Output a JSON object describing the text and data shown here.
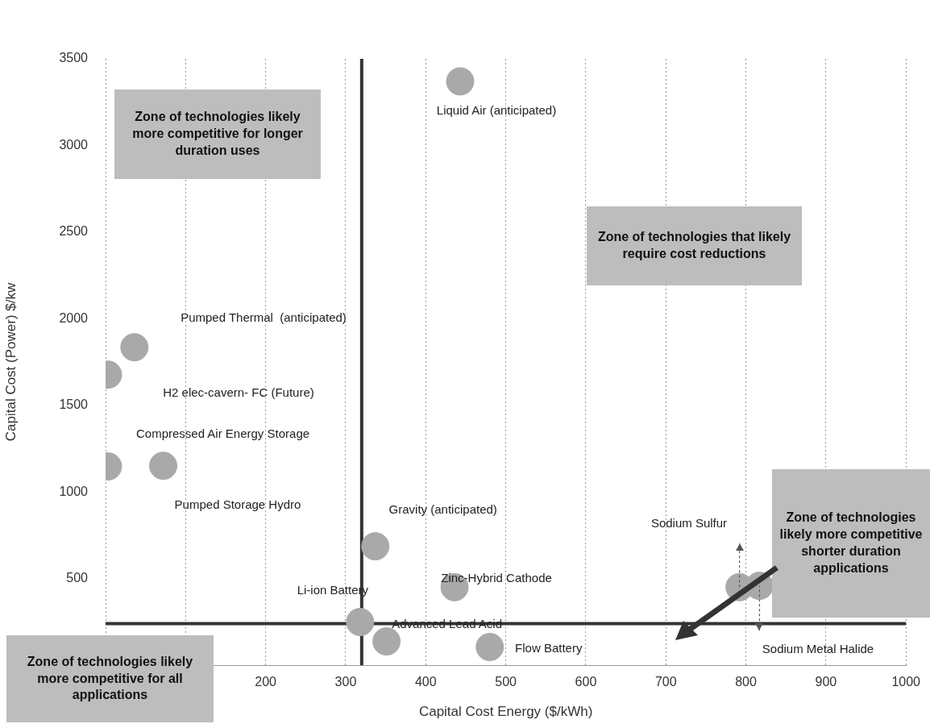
{
  "chart_data": {
    "type": "scatter",
    "xlabel": "Capital Cost Energy ($/kWh)",
    "ylabel": "Capital Cost (Power) $/kw",
    "x": [
      443,
      36,
      3,
      72,
      3,
      337,
      318,
      351,
      436,
      480,
      792,
      817
    ],
    "series": [
      {
        "color": "#a9a9a9",
        "values": [
          3370,
          1835,
          1677,
          1151,
          1147,
          686,
          249,
          137,
          450,
          105,
          450,
          458
        ],
        "errors": [
          null,
          null,
          null,
          null,
          null,
          null,
          null,
          null,
          null,
          null,
          [
            450,
            705
          ],
          [
            199,
            458
          ]
        ]
      }
    ],
    "xlim": [
      0,
      1000
    ],
    "xticks": [
      {
        "value": 0,
        "label": null
      },
      {
        "value": 100,
        "label": null
      },
      200,
      300,
      400,
      500,
      600,
      700,
      800,
      900,
      1000
    ],
    "ylim": [
      0,
      3500
    ],
    "yticks": [
      500,
      1000,
      1500,
      2000,
      2500,
      3000,
      3500
    ],
    "grid": "x",
    "legend": false,
    "marker": "circle",
    "ref_lines": [
      {
        "axis": "x",
        "value": 320,
        "color": "#333333"
      },
      {
        "axis": "y",
        "value": 240,
        "color": "#333333"
      }
    ],
    "annotations": [
      {
        "text": "Liquid Air (anticipated)",
        "x": 443,
        "y": 3370
      },
      "Pumped Thermal  (anticipated)",
      "H2 elec-cavern- FC (Future)",
      {
        "text": "Compressed Air Energy Storage",
        "x": 72,
        "y": 1151
      },
      "Pumped Storage Hydro",
      {
        "text": "Gravity (anticipated)",
        "x": 337,
        "y": 686
      },
      {
        "text": "Li-ion Battery",
        "x": 318,
        "y": 249
      },
      {
        "text": "Zinc-Hybrid Cathode",
        "x": 436,
        "y": 450
      },
      {
        "text": "Advanced Lead Acid",
        "x": 351,
        "y": 137
      },
      {
        "text": "Flow Battery",
        "x": 480,
        "y": 105
      },
      "Sodium Sulfur",
      "Sodium Metal Halide",
      "Zone of technologies likely more competitive for longer duration uses",
      "Zone of technologies that likely require cost reductions",
      "Zone of technologies likely more competitive shorter duration applications",
      "Zone of technologies likely more competitive for all applications"
    ]
  }
}
